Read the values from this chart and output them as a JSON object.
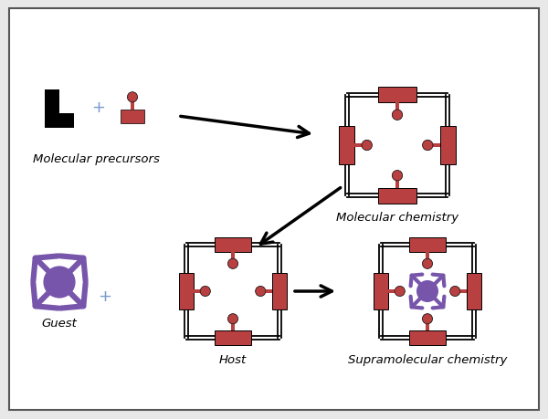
{
  "bg_color": "#e8e8e8",
  "red_color": "#b84040",
  "purple_color": "#7755aa",
  "black_color": "#111111",
  "plus_color": "#7799cc",
  "labels": {
    "mol_precursors": "Molecular precursors",
    "mol_chemistry": "Molecular chemistry",
    "guest": "Guest",
    "host": "Host",
    "supramol": "Supramolecular chemistry"
  },
  "frame_line_color": "#111111",
  "white": "#ffffff"
}
